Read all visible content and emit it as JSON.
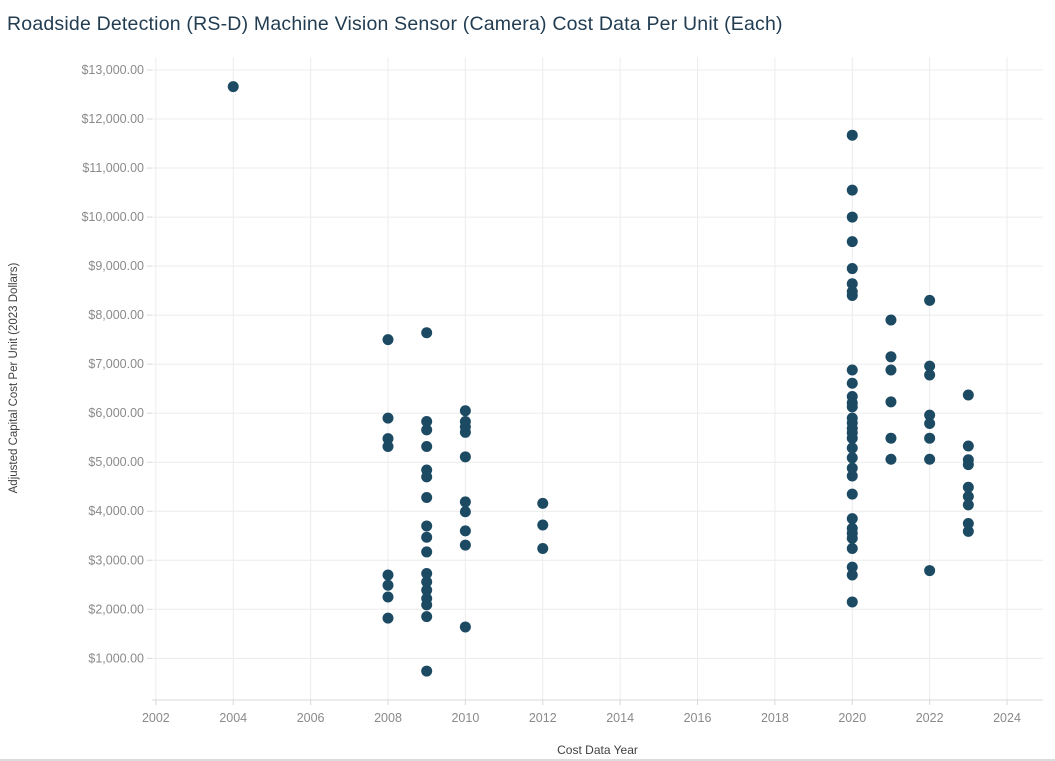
{
  "chart_data": {
    "type": "scatter",
    "title": "Roadside Detection (RS-D) Machine Vision Sensor (Camera) Cost Data Per Unit (Each)",
    "xlabel": "Cost Data Year",
    "ylabel": "Adjusted Capital Cost Per Unit (2023 Dollars)",
    "xlim": [
      2001.9,
      2024.93
    ],
    "ylim": [
      150,
      13265
    ],
    "grid": true,
    "legend": "none",
    "x_ticks": [
      2002,
      2004,
      2006,
      2008,
      2010,
      2012,
      2014,
      2016,
      2018,
      2020,
      2022,
      2024
    ],
    "y_tick_values": [
      1000,
      2000,
      3000,
      4000,
      5000,
      6000,
      7000,
      8000,
      9000,
      10000,
      11000,
      12000,
      13000
    ],
    "y_tick_labels": [
      "$1,000.00",
      "$2,000.00",
      "$3,000.00",
      "$4,000.00",
      "$5,000.00",
      "$6,000.00",
      "$7,000.00",
      "$8,000.00",
      "$9,000.00",
      "$10,000.00",
      "$11,000.00",
      "$12,000.00",
      "$13,000.00"
    ],
    "marker_color": "#1d4a63",
    "gridline_color": "#ececec",
    "axis_line_color": "#d8d8d8",
    "tick_label_color": "#8a8a8a",
    "groups": [
      {
        "x": 2004,
        "values": [
          12660
        ]
      },
      {
        "x": 2008,
        "values": [
          7500,
          5900,
          5480,
          5320,
          2700,
          2490,
          2250,
          1820
        ]
      },
      {
        "x": 2009,
        "values": [
          7640,
          5830,
          5660,
          5320,
          4840,
          4700,
          4280,
          3700,
          3470,
          3170,
          2730,
          2560,
          2390,
          2220,
          2090,
          1850,
          740
        ]
      },
      {
        "x": 2010,
        "values": [
          6050,
          5830,
          5720,
          5610,
          5110,
          4190,
          3990,
          3600,
          3310,
          1640
        ]
      },
      {
        "x": 2012,
        "values": [
          4160,
          3720,
          3240
        ]
      },
      {
        "x": 2020,
        "values": [
          11670,
          10550,
          10000,
          9500,
          8950,
          8640,
          8480,
          8400,
          6880,
          6610,
          6340,
          6210,
          6130,
          5900,
          5800,
          5690,
          5600,
          5490,
          5290,
          5090,
          4880,
          4720,
          4350,
          3850,
          3650,
          3550,
          3450,
          3240,
          2860,
          2700,
          2150
        ]
      },
      {
        "x": 2021,
        "values": [
          7900,
          7150,
          6880,
          6230,
          5490,
          5060
        ]
      },
      {
        "x": 2022,
        "values": [
          8300,
          6960,
          6780,
          5960,
          5790,
          5490,
          5060,
          2790
        ]
      },
      {
        "x": 2023,
        "values": [
          6370,
          5330,
          5050,
          4950,
          4490,
          4300,
          4130,
          3750,
          3590
        ]
      }
    ]
  }
}
